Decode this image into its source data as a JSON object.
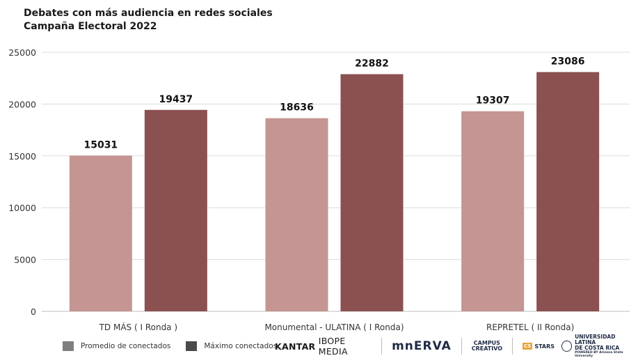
{
  "title_line1": "Debates con más audiencia en redes sociales",
  "title_line2": "Campaña Electoral 2022",
  "chart_data": {
    "type": "bar",
    "categories": [
      "TD MÁS ( I Ronda )",
      "Monumental - ULATINA ( I Ronda)",
      "REPRETEL ( II Ronda)"
    ],
    "series": [
      {
        "name": "Promedio de conectados",
        "values": [
          15031,
          18636,
          19307
        ],
        "color": "#c49592"
      },
      {
        "name": "Máximo conectados",
        "values": [
          19437,
          22882,
          23086
        ],
        "color": "#8b5050"
      }
    ],
    "ylim": [
      0,
      25000
    ],
    "yticks": [
      0,
      5000,
      10000,
      15000,
      20000,
      25000
    ],
    "grid": true,
    "legend_position": "bottom-left",
    "data_labels": true
  },
  "legend": {
    "item1_label": "Promedio de conectados",
    "item1_color": "#7f7f7f",
    "item2_label": "Máximo conectados",
    "item2_color": "#4a4a4a"
  },
  "logos": {
    "kantar_bold": "KANTAR",
    "kantar_rest": "IBOPE MEDIA",
    "minerva": "mnERVA",
    "campus_line1": "CAMPUS",
    "campus_line2": "CREATIVO",
    "stars_badge": "CS",
    "stars": "STARS",
    "ulatina_line1": "UNIVERSIDAD LATINA",
    "ulatina_line2": "DE COSTA RICA",
    "ulatina_line3": "POWERED BY Arizona State University"
  }
}
